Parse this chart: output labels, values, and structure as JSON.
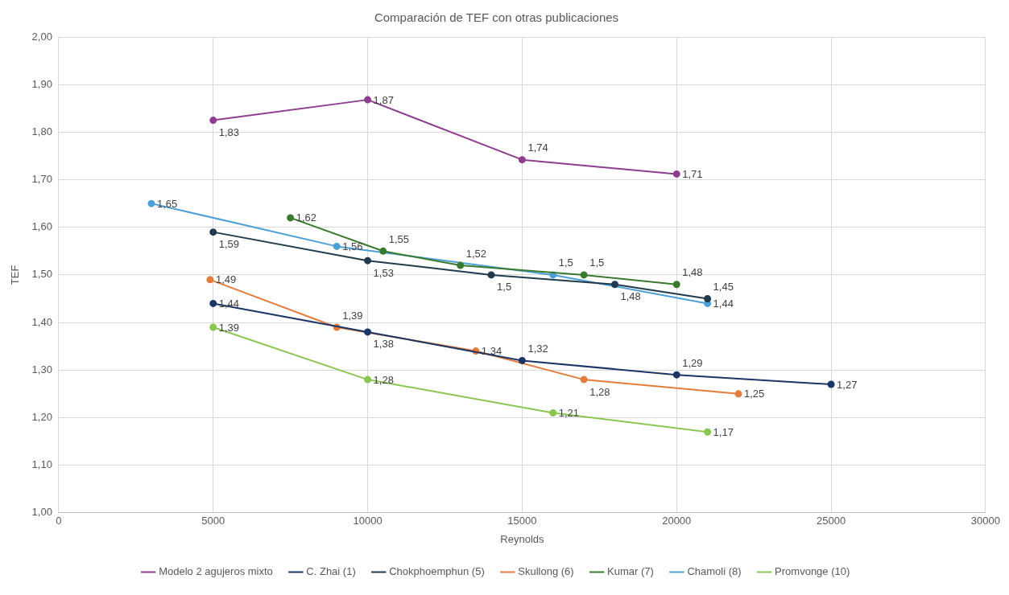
{
  "chart_data": {
    "type": "line",
    "title": "Comparación de TEF con otras publicaciones",
    "xlabel": "Reynolds",
    "ylabel": "TEF",
    "xlim": [
      0,
      30000
    ],
    "xticks": [
      0,
      5000,
      10000,
      15000,
      20000,
      25000,
      30000
    ],
    "ylim": [
      1,
      2
    ],
    "yticks": [
      {
        "value": 1,
        "label": "1,00"
      },
      {
        "value": 1.1,
        "label": "1,10"
      },
      {
        "value": 1.2,
        "label": "1,20"
      },
      {
        "value": 1.3,
        "label": "1,30"
      },
      {
        "value": 1.4,
        "label": "1,40"
      },
      {
        "value": 1.5,
        "label": "1,50"
      },
      {
        "value": 1.6,
        "label": "1,60"
      },
      {
        "value": 1.7,
        "label": "1,70"
      },
      {
        "value": 1.8,
        "label": "1,80"
      },
      {
        "value": 1.9,
        "label": "1,90"
      },
      {
        "value": 2,
        "label": "2,00"
      }
    ],
    "grid": true,
    "legend": "bottom",
    "marker": "circle",
    "line_style": "solid",
    "series": [
      {
        "name": "Modelo 2 agujeros mixto",
        "color": "#8e3d91",
        "x": [
          5000,
          10000,
          15000,
          20000
        ],
        "values": [
          1.825,
          1.868,
          1.742,
          1.712
        ],
        "value_labels": [
          "1,83",
          "1,87",
          "1,74",
          "1,71"
        ]
      },
      {
        "name": "C. Zhai (1)",
        "color": "#1a3566",
        "x": [
          5000,
          10000,
          15000,
          20000,
          25000
        ],
        "values": [
          1.44,
          1.38,
          1.32,
          1.29,
          1.27
        ],
        "value_labels": [
          "1,44",
          "1,38",
          "1,32",
          "1,29",
          "1,27"
        ]
      },
      {
        "name": "Chokphoemphun (5)",
        "color": "#1f3b4d",
        "x": [
          5000,
          10000,
          14000,
          18000,
          21000
        ],
        "values": [
          1.59,
          1.53,
          1.5,
          1.48,
          1.45
        ],
        "value_labels": [
          "1,59",
          "1,53",
          "1,5",
          "1,48",
          "1,45"
        ]
      },
      {
        "name": "Skullong (6)",
        "color": "#e47c3c",
        "x": [
          4900,
          9000,
          13500,
          17000,
          22000
        ],
        "values": [
          1.49,
          1.39,
          1.34,
          1.28,
          1.25
        ],
        "value_labels": [
          "1,49",
          "1,39",
          "1,34",
          "1,28",
          "1,25"
        ]
      },
      {
        "name": "Kumar (7)",
        "color": "#3a7a2e",
        "x": [
          7500,
          10500,
          13000,
          17000,
          20000
        ],
        "values": [
          1.62,
          1.55,
          1.52,
          1.5,
          1.48
        ],
        "value_labels": [
          "1,62",
          "1,55",
          "1,52",
          "1,5",
          "1,48"
        ]
      },
      {
        "name": "Chamoli (8)",
        "color": "#4ca0d8",
        "x": [
          3000,
          9000,
          16000,
          21000
        ],
        "values": [
          1.65,
          1.56,
          1.5,
          1.44
        ],
        "value_labels": [
          "1,65",
          "1,56",
          "1,5",
          "1,44"
        ]
      },
      {
        "name": "Promvonge (10)",
        "color": "#8cc652",
        "x": [
          5000,
          10000,
          16000,
          21000
        ],
        "values": [
          1.39,
          1.28,
          1.21,
          1.17
        ],
        "value_labels": [
          "1,39",
          "1,28",
          "1,21",
          "1,17"
        ]
      }
    ]
  }
}
